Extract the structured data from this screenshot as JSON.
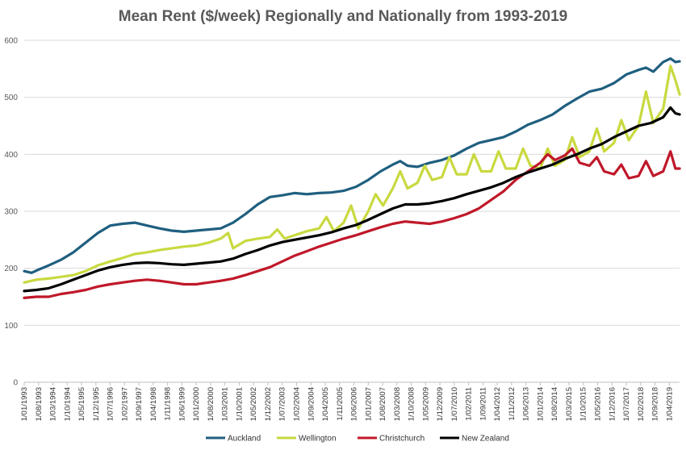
{
  "chart_data": {
    "type": "line",
    "title": "Mean Rent ($/week) Regionally and Nationally from 1993-2019",
    "xlabel": "",
    "ylabel": "",
    "ylim": [
      0,
      600
    ],
    "yticks": [
      0,
      100,
      200,
      300,
      400,
      500,
      600
    ],
    "grid": true,
    "legend": "bottom",
    "x_start": "1/01/1993",
    "x_end": "1/09/2019",
    "x_tick_labels": [
      "1/01/1993",
      "1/08/1993",
      "1/03/1994",
      "1/10/1994",
      "1/05/1995",
      "1/12/1995",
      "1/07/1996",
      "1/02/1997",
      "1/09/1997",
      "1/04/1998",
      "1/11/1998",
      "1/06/1999",
      "1/01/2000",
      "1/08/2000",
      "1/03/2001",
      "1/10/2001",
      "1/05/2002",
      "1/12/2002",
      "1/07/2003",
      "1/02/2004",
      "1/09/2004",
      "1/04/2005",
      "1/11/2005",
      "1/06/2006",
      "1/01/2007",
      "1/08/2007",
      "1/03/2008",
      "1/10/2008",
      "1/05/2009",
      "1/12/2009",
      "1/07/2010",
      "1/02/2011",
      "1/09/2011",
      "1/04/2012",
      "1/11/2012",
      "1/06/2013",
      "1/01/2014",
      "1/08/2014",
      "1/03/2015",
      "1/10/2015",
      "1/05/2016",
      "1/12/2016",
      "1/07/2017",
      "1/02/2018",
      "1/09/2018",
      "1/04/2019"
    ],
    "series": [
      {
        "name": "Auckland",
        "color": "#1f5f7f",
        "points": [
          [
            1993.0,
            195
          ],
          [
            1993.3,
            192
          ],
          [
            1993.6,
            198
          ],
          [
            1994.0,
            205
          ],
          [
            1994.5,
            215
          ],
          [
            1995.0,
            228
          ],
          [
            1995.5,
            245
          ],
          [
            1996.0,
            262
          ],
          [
            1996.5,
            275
          ],
          [
            1997.0,
            278
          ],
          [
            1997.5,
            280
          ],
          [
            1998.0,
            275
          ],
          [
            1998.5,
            270
          ],
          [
            1999.0,
            266
          ],
          [
            1999.5,
            264
          ],
          [
            2000.0,
            266
          ],
          [
            2000.5,
            268
          ],
          [
            2001.0,
            270
          ],
          [
            2001.5,
            280
          ],
          [
            2002.0,
            295
          ],
          [
            2002.5,
            312
          ],
          [
            2003.0,
            325
          ],
          [
            2003.5,
            328
          ],
          [
            2004.0,
            332
          ],
          [
            2004.5,
            330
          ],
          [
            2005.0,
            332
          ],
          [
            2005.5,
            333
          ],
          [
            2006.0,
            336
          ],
          [
            2006.5,
            343
          ],
          [
            2007.0,
            355
          ],
          [
            2007.5,
            370
          ],
          [
            2008.0,
            382
          ],
          [
            2008.3,
            388
          ],
          [
            2008.6,
            380
          ],
          [
            2009.0,
            378
          ],
          [
            2009.5,
            385
          ],
          [
            2010.0,
            390
          ],
          [
            2010.5,
            398
          ],
          [
            2011.0,
            410
          ],
          [
            2011.5,
            420
          ],
          [
            2012.0,
            425
          ],
          [
            2012.5,
            430
          ],
          [
            2013.0,
            440
          ],
          [
            2013.5,
            452
          ],
          [
            2014.0,
            460
          ],
          [
            2014.5,
            470
          ],
          [
            2015.0,
            485
          ],
          [
            2015.5,
            498
          ],
          [
            2016.0,
            510
          ],
          [
            2016.5,
            515
          ],
          [
            2017.0,
            525
          ],
          [
            2017.5,
            540
          ],
          [
            2018.0,
            548
          ],
          [
            2018.3,
            552
          ],
          [
            2018.6,
            545
          ],
          [
            2019.0,
            562
          ],
          [
            2019.3,
            568
          ],
          [
            2019.5,
            562
          ],
          [
            2019.67,
            563
          ]
        ]
      },
      {
        "name": "Wellington",
        "color": "#c9d940",
        "points": [
          [
            1993.0,
            175
          ],
          [
            1993.5,
            180
          ],
          [
            1994.0,
            182
          ],
          [
            1994.5,
            185
          ],
          [
            1995.0,
            188
          ],
          [
            1995.5,
            195
          ],
          [
            1996.0,
            205
          ],
          [
            1996.5,
            212
          ],
          [
            1997.0,
            218
          ],
          [
            1997.5,
            225
          ],
          [
            1998.0,
            228
          ],
          [
            1998.5,
            232
          ],
          [
            1999.0,
            235
          ],
          [
            1999.5,
            238
          ],
          [
            2000.0,
            240
          ],
          [
            2000.5,
            245
          ],
          [
            2001.0,
            252
          ],
          [
            2001.3,
            262
          ],
          [
            2001.5,
            235
          ],
          [
            2002.0,
            248
          ],
          [
            2002.5,
            252
          ],
          [
            2003.0,
            255
          ],
          [
            2003.3,
            268
          ],
          [
            2003.6,
            252
          ],
          [
            2004.0,
            258
          ],
          [
            2004.5,
            265
          ],
          [
            2005.0,
            270
          ],
          [
            2005.3,
            290
          ],
          [
            2005.6,
            265
          ],
          [
            2006.0,
            280
          ],
          [
            2006.3,
            310
          ],
          [
            2006.6,
            270
          ],
          [
            2007.0,
            300
          ],
          [
            2007.3,
            330
          ],
          [
            2007.6,
            310
          ],
          [
            2008.0,
            340
          ],
          [
            2008.3,
            370
          ],
          [
            2008.6,
            340
          ],
          [
            2009.0,
            350
          ],
          [
            2009.3,
            380
          ],
          [
            2009.6,
            355
          ],
          [
            2010.0,
            360
          ],
          [
            2010.3,
            395
          ],
          [
            2010.6,
            365
          ],
          [
            2011.0,
            365
          ],
          [
            2011.3,
            400
          ],
          [
            2011.6,
            370
          ],
          [
            2012.0,
            370
          ],
          [
            2012.3,
            405
          ],
          [
            2012.6,
            375
          ],
          [
            2013.0,
            375
          ],
          [
            2013.3,
            410
          ],
          [
            2013.6,
            380
          ],
          [
            2014.0,
            375
          ],
          [
            2014.3,
            410
          ],
          [
            2014.6,
            380
          ],
          [
            2015.0,
            390
          ],
          [
            2015.3,
            430
          ],
          [
            2015.6,
            395
          ],
          [
            2016.0,
            405
          ],
          [
            2016.3,
            445
          ],
          [
            2016.6,
            405
          ],
          [
            2017.0,
            420
          ],
          [
            2017.3,
            460
          ],
          [
            2017.6,
            425
          ],
          [
            2018.0,
            450
          ],
          [
            2018.3,
            510
          ],
          [
            2018.6,
            455
          ],
          [
            2019.0,
            480
          ],
          [
            2019.3,
            555
          ],
          [
            2019.5,
            530
          ],
          [
            2019.67,
            505
          ]
        ]
      },
      {
        "name": "Christchurch",
        "color": "#c0182a",
        "points": [
          [
            1993.0,
            148
          ],
          [
            1993.5,
            150
          ],
          [
            1994.0,
            150
          ],
          [
            1994.5,
            155
          ],
          [
            1995.0,
            158
          ],
          [
            1995.5,
            162
          ],
          [
            1996.0,
            168
          ],
          [
            1996.5,
            172
          ],
          [
            1997.0,
            175
          ],
          [
            1997.5,
            178
          ],
          [
            1998.0,
            180
          ],
          [
            1998.5,
            178
          ],
          [
            1999.0,
            175
          ],
          [
            1999.5,
            172
          ],
          [
            2000.0,
            172
          ],
          [
            2000.5,
            175
          ],
          [
            2001.0,
            178
          ],
          [
            2001.5,
            182
          ],
          [
            2002.0,
            188
          ],
          [
            2002.5,
            195
          ],
          [
            2003.0,
            202
          ],
          [
            2003.5,
            212
          ],
          [
            2004.0,
            222
          ],
          [
            2004.5,
            230
          ],
          [
            2005.0,
            238
          ],
          [
            2005.5,
            245
          ],
          [
            2006.0,
            252
          ],
          [
            2006.5,
            258
          ],
          [
            2007.0,
            265
          ],
          [
            2007.5,
            272
          ],
          [
            2008.0,
            278
          ],
          [
            2008.5,
            282
          ],
          [
            2009.0,
            280
          ],
          [
            2009.5,
            278
          ],
          [
            2010.0,
            282
          ],
          [
            2010.5,
            288
          ],
          [
            2011.0,
            295
          ],
          [
            2011.5,
            305
          ],
          [
            2012.0,
            320
          ],
          [
            2012.5,
            335
          ],
          [
            2013.0,
            355
          ],
          [
            2013.5,
            370
          ],
          [
            2014.0,
            385
          ],
          [
            2014.3,
            400
          ],
          [
            2014.6,
            390
          ],
          [
            2015.0,
            398
          ],
          [
            2015.3,
            410
          ],
          [
            2015.6,
            385
          ],
          [
            2016.0,
            380
          ],
          [
            2016.3,
            395
          ],
          [
            2016.6,
            370
          ],
          [
            2017.0,
            365
          ],
          [
            2017.3,
            382
          ],
          [
            2017.6,
            358
          ],
          [
            2018.0,
            362
          ],
          [
            2018.3,
            388
          ],
          [
            2018.6,
            362
          ],
          [
            2019.0,
            370
          ],
          [
            2019.3,
            405
          ],
          [
            2019.5,
            375
          ],
          [
            2019.67,
            375
          ]
        ]
      },
      {
        "name": "New Zealand",
        "color": "#000000",
        "points": [
          [
            1993.0,
            160
          ],
          [
            1993.5,
            162
          ],
          [
            1994.0,
            165
          ],
          [
            1994.5,
            172
          ],
          [
            1995.0,
            180
          ],
          [
            1995.5,
            188
          ],
          [
            1996.0,
            196
          ],
          [
            1996.5,
            202
          ],
          [
            1997.0,
            206
          ],
          [
            1997.5,
            209
          ],
          [
            1998.0,
            210
          ],
          [
            1998.5,
            209
          ],
          [
            1999.0,
            207
          ],
          [
            1999.5,
            206
          ],
          [
            2000.0,
            208
          ],
          [
            2000.5,
            210
          ],
          [
            2001.0,
            212
          ],
          [
            2001.5,
            217
          ],
          [
            2002.0,
            225
          ],
          [
            2002.5,
            232
          ],
          [
            2003.0,
            240
          ],
          [
            2003.5,
            246
          ],
          [
            2004.0,
            250
          ],
          [
            2004.5,
            254
          ],
          [
            2005.0,
            258
          ],
          [
            2005.5,
            263
          ],
          [
            2006.0,
            270
          ],
          [
            2006.5,
            276
          ],
          [
            2007.0,
            285
          ],
          [
            2007.5,
            295
          ],
          [
            2008.0,
            305
          ],
          [
            2008.5,
            312
          ],
          [
            2009.0,
            312
          ],
          [
            2009.5,
            314
          ],
          [
            2010.0,
            318
          ],
          [
            2010.5,
            323
          ],
          [
            2011.0,
            330
          ],
          [
            2011.5,
            336
          ],
          [
            2012.0,
            342
          ],
          [
            2012.5,
            350
          ],
          [
            2013.0,
            360
          ],
          [
            2013.5,
            368
          ],
          [
            2014.0,
            375
          ],
          [
            2014.5,
            382
          ],
          [
            2015.0,
            392
          ],
          [
            2015.5,
            400
          ],
          [
            2016.0,
            410
          ],
          [
            2016.5,
            418
          ],
          [
            2017.0,
            430
          ],
          [
            2017.5,
            440
          ],
          [
            2018.0,
            450
          ],
          [
            2018.5,
            455
          ],
          [
            2019.0,
            465
          ],
          [
            2019.3,
            482
          ],
          [
            2019.5,
            472
          ],
          [
            2019.67,
            470
          ]
        ]
      }
    ]
  }
}
